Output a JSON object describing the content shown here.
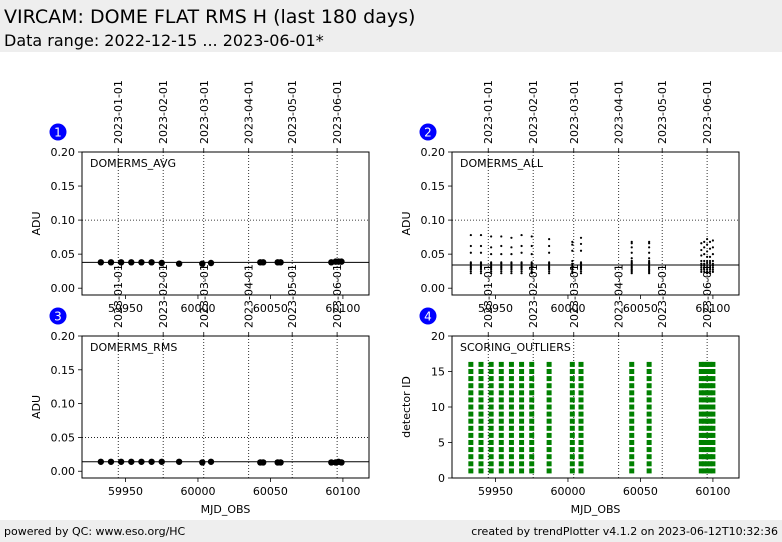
{
  "page": {
    "title": "VIRCAM: DOME FLAT RMS H (last 180 days)",
    "subtitle": "Data range: 2022-12-15 ... 2023-06-01*",
    "footer_left": "powered by QC: www.eso.org/HC",
    "footer_right": "created by trendPlotter v4.1.2 on 2023-06-12T10:32:36"
  },
  "colors": {
    "marker_blue": "#0000ff",
    "outlier_green": "#008000",
    "data_black": "#000000"
  },
  "chart_data": [
    {
      "type": "scatter",
      "panel_number": "1",
      "label": "DOMERMS_AVG",
      "ylabel": "ADU",
      "xlabel": "",
      "xlim": [
        59920,
        60118
      ],
      "ylim": [
        -0.01,
        0.2
      ],
      "yticks": [
        0.0,
        0.05,
        0.1,
        0.15,
        0.2
      ],
      "ytick_labels": [
        "0.00",
        "0.05",
        "0.10",
        "0.15",
        "0.20"
      ],
      "xticks": [
        59950,
        60000,
        60050,
        60100
      ],
      "reference_line": 0.038,
      "hline_dotted": 0.1,
      "date_ticks": [
        {
          "label": "2023-01-01",
          "mjd": 59945
        },
        {
          "label": "2023-02-01",
          "mjd": 59976
        },
        {
          "label": "2023-03-01",
          "mjd": 60004
        },
        {
          "label": "2023-04-01",
          "mjd": 60035
        },
        {
          "label": "2023-05-01",
          "mjd": 60065
        },
        {
          "label": "2023-06-01",
          "mjd": 60096
        }
      ],
      "marker": "dot",
      "points": [
        [
          59933,
          0.038
        ],
        [
          59940,
          0.038
        ],
        [
          59947,
          0.038
        ],
        [
          59954,
          0.038
        ],
        [
          59961,
          0.038
        ],
        [
          59968,
          0.038
        ],
        [
          59975,
          0.037
        ],
        [
          59987,
          0.036
        ],
        [
          60003,
          0.036
        ],
        [
          60009,
          0.037
        ],
        [
          60043,
          0.038
        ],
        [
          60045,
          0.038
        ],
        [
          60055,
          0.038
        ],
        [
          60057,
          0.038
        ],
        [
          60092,
          0.038
        ],
        [
          60095,
          0.039
        ],
        [
          60097,
          0.039
        ],
        [
          60099,
          0.039
        ]
      ]
    },
    {
      "type": "scatter",
      "panel_number": "2",
      "label": "DOMERMS_ALL",
      "ylabel": "ADU",
      "xlabel": "",
      "xlim": [
        59920,
        60118
      ],
      "ylim": [
        -0.01,
        0.2
      ],
      "yticks": [
        0.0,
        0.05,
        0.1,
        0.15,
        0.2
      ],
      "ytick_labels": [
        "0.00",
        "0.05",
        "0.10",
        "0.15",
        "0.20"
      ],
      "xticks": [
        59950,
        60000,
        60050,
        60100
      ],
      "reference_line": 0.034,
      "hline_dotted": 0.1,
      "date_ticks": [
        {
          "label": "2023-01-01",
          "mjd": 59945
        },
        {
          "label": "2023-02-01",
          "mjd": 59976
        },
        {
          "label": "2023-03-01",
          "mjd": 60004
        },
        {
          "label": "2023-04-01",
          "mjd": 60035
        },
        {
          "label": "2023-05-01",
          "mjd": 60065
        },
        {
          "label": "2023-06-01",
          "mjd": 60096
        }
      ],
      "marker": "small",
      "columns": [
        {
          "x": 59933,
          "y": [
            0.022,
            0.025,
            0.028,
            0.03,
            0.032,
            0.034,
            0.036,
            0.038,
            0.052,
            0.062,
            0.078
          ]
        },
        {
          "x": 59940,
          "y": [
            0.022,
            0.025,
            0.028,
            0.03,
            0.032,
            0.034,
            0.036,
            0.038,
            0.052,
            0.062,
            0.078
          ]
        },
        {
          "x": 59947,
          "y": [
            0.022,
            0.025,
            0.028,
            0.03,
            0.032,
            0.034,
            0.036,
            0.038,
            0.05,
            0.06,
            0.076
          ]
        },
        {
          "x": 59954,
          "y": [
            0.022,
            0.025,
            0.028,
            0.03,
            0.032,
            0.034,
            0.036,
            0.038,
            0.05,
            0.062,
            0.076
          ]
        },
        {
          "x": 59961,
          "y": [
            0.022,
            0.025,
            0.028,
            0.03,
            0.032,
            0.034,
            0.036,
            0.038,
            0.05,
            0.06,
            0.074
          ]
        },
        {
          "x": 59968,
          "y": [
            0.022,
            0.025,
            0.028,
            0.03,
            0.032,
            0.034,
            0.036,
            0.038,
            0.052,
            0.062,
            0.078
          ]
        },
        {
          "x": 59975,
          "y": [
            0.022,
            0.025,
            0.028,
            0.03,
            0.032,
            0.034,
            0.036,
            0.038,
            0.05,
            0.062,
            0.076
          ]
        },
        {
          "x": 59987,
          "y": [
            0.022,
            0.025,
            0.028,
            0.03,
            0.032,
            0.034,
            0.036,
            0.038,
            0.052,
            0.062,
            0.072
          ]
        },
        {
          "x": 60003,
          "y": [
            0.022,
            0.025,
            0.028,
            0.03,
            0.032,
            0.034,
            0.036,
            0.04,
            0.055,
            0.064,
            0.068
          ]
        },
        {
          "x": 60009,
          "y": [
            0.022,
            0.025,
            0.028,
            0.03,
            0.032,
            0.034,
            0.036,
            0.038,
            0.055,
            0.065,
            0.074
          ]
        },
        {
          "x": 60044,
          "y": [
            0.022,
            0.024,
            0.026,
            0.028,
            0.03,
            0.032,
            0.034,
            0.036,
            0.038,
            0.04,
            0.044,
            0.052,
            0.06,
            0.066,
            0.068
          ]
        },
        {
          "x": 60056,
          "y": [
            0.022,
            0.024,
            0.026,
            0.028,
            0.03,
            0.032,
            0.034,
            0.036,
            0.038,
            0.04,
            0.044,
            0.052,
            0.06,
            0.066,
            0.068
          ]
        },
        {
          "x": 60092,
          "y": [
            0.024,
            0.027,
            0.03,
            0.033,
            0.036,
            0.04,
            0.048,
            0.056,
            0.066
          ]
        },
        {
          "x": 60094,
          "y": [
            0.024,
            0.027,
            0.03,
            0.033,
            0.036,
            0.04,
            0.05,
            0.06,
            0.068
          ]
        },
        {
          "x": 60096,
          "y": [
            0.022,
            0.025,
            0.028,
            0.031,
            0.034,
            0.037,
            0.04,
            0.046,
            0.054,
            0.064,
            0.072
          ]
        },
        {
          "x": 60098,
          "y": [
            0.022,
            0.025,
            0.028,
            0.031,
            0.034,
            0.037,
            0.04,
            0.046,
            0.058,
            0.068
          ]
        },
        {
          "x": 60100,
          "y": [
            0.024,
            0.027,
            0.03,
            0.033,
            0.036,
            0.04,
            0.05,
            0.06,
            0.07
          ]
        }
      ]
    },
    {
      "type": "scatter",
      "panel_number": "3",
      "label": "DOMERMS_RMS",
      "ylabel": "ADU",
      "xlabel": "MJD_OBS",
      "xlim": [
        59920,
        60118
      ],
      "ylim": [
        -0.01,
        0.2
      ],
      "yticks": [
        0.0,
        0.05,
        0.1,
        0.15,
        0.2
      ],
      "ytick_labels": [
        "0.00",
        "0.05",
        "0.10",
        "0.15",
        "0.20"
      ],
      "xticks": [
        59950,
        60000,
        60050,
        60100
      ],
      "reference_line": 0.014,
      "hline_dotted": 0.05,
      "date_ticks": [
        {
          "label": "2023-01-01",
          "mjd": 59945
        },
        {
          "label": "2023-02-01",
          "mjd": 59976
        },
        {
          "label": "2023-03-01",
          "mjd": 60004
        },
        {
          "label": "2023-04-01",
          "mjd": 60035
        },
        {
          "label": "2023-05-01",
          "mjd": 60065
        },
        {
          "label": "2023-06-01",
          "mjd": 60096
        }
      ],
      "marker": "dot",
      "points": [
        [
          59933,
          0.014
        ],
        [
          59940,
          0.014
        ],
        [
          59947,
          0.014
        ],
        [
          59954,
          0.014
        ],
        [
          59961,
          0.014
        ],
        [
          59968,
          0.014
        ],
        [
          59975,
          0.014
        ],
        [
          59987,
          0.014
        ],
        [
          60003,
          0.013
        ],
        [
          60009,
          0.014
        ],
        [
          60043,
          0.013
        ],
        [
          60045,
          0.013
        ],
        [
          60055,
          0.013
        ],
        [
          60057,
          0.013
        ],
        [
          60092,
          0.013
        ],
        [
          60095,
          0.013
        ],
        [
          60097,
          0.014
        ],
        [
          60099,
          0.013
        ]
      ]
    },
    {
      "type": "scatter",
      "panel_number": "4",
      "label": "SCORING_OUTLIERS",
      "ylabel": "detector ID",
      "xlabel": "MJD_OBS",
      "xlim": [
        59920,
        60118
      ],
      "ylim": [
        0,
        20
      ],
      "yticks": [
        0,
        5,
        10,
        15,
        20
      ],
      "ytick_labels": [
        "0",
        "5",
        "10",
        "15",
        "20"
      ],
      "xticks": [
        59950,
        60000,
        60050,
        60100
      ],
      "date_ticks": [
        {
          "label": "2023-01-01",
          "mjd": 59945
        },
        {
          "label": "2023-02-01",
          "mjd": 59976
        },
        {
          "label": "2023-03-01",
          "mjd": 60004
        },
        {
          "label": "2023-04-01",
          "mjd": 60035
        },
        {
          "label": "2023-05-01",
          "mjd": 60065
        },
        {
          "label": "2023-06-01",
          "mjd": 60096
        }
      ],
      "marker": "square",
      "detectors": [
        1,
        2,
        3,
        4,
        5,
        6,
        7,
        8,
        9,
        10,
        11,
        12,
        13,
        14,
        15,
        16
      ],
      "dates": [
        59933,
        59940,
        59947,
        59954,
        59961,
        59968,
        59975,
        59987,
        60003,
        60009,
        60044,
        60056,
        60092,
        60094,
        60096,
        60098,
        60100
      ]
    }
  ]
}
